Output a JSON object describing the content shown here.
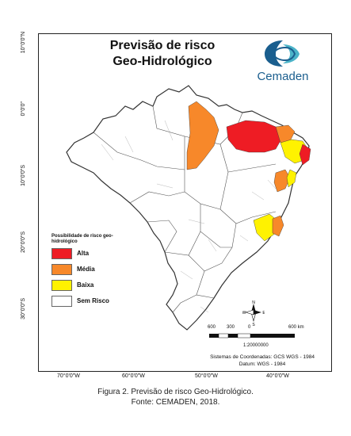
{
  "map": {
    "title_line1": "Previsão de risco",
    "title_line2": "Geo-Hidrológico",
    "logo_text": "Cemaden",
    "latitude_labels": [
      "10°0'0\"N",
      "0°0'0\"",
      "10°0'0\"S",
      "20°0'0\"S",
      "30°0'0\"S"
    ],
    "longitude_labels": [
      "70°0'0\"W",
      "60°0'0\"W",
      "50°0'0\"W",
      "40°0'0\"W"
    ],
    "legend": {
      "title": "Possibilidade de risco geo-hidrológico",
      "items": [
        {
          "label": "Alta",
          "color": "#ee1c24"
        },
        {
          "label": "Média",
          "color": "#f7882a"
        },
        {
          "label": "Baixa",
          "color": "#fff200"
        },
        {
          "label": "Sem Risco",
          "color": "#ffffff"
        }
      ]
    },
    "compass": {
      "n": "N",
      "s": "S",
      "e": "E",
      "w": "W"
    },
    "scale": {
      "labels": [
        "600",
        "300",
        "0",
        "600 km"
      ],
      "ratio": "1:20000000"
    },
    "coordinate_system": "Sistemas de Coordenadas: GCS WGS - 1984",
    "datum": "Datum: WGS - 1984",
    "colors": {
      "high": "#ee1c24",
      "medium": "#f7882a",
      "low": "#fff200",
      "border": "#555555",
      "logo_blue": "#1a5e8e",
      "logo_teal": "#4bb3c8"
    }
  },
  "caption": {
    "line1": "Figura 2. Previsão de risco Geo-Hidrológico.",
    "line2": "Fonte: CEMADEN, 2018."
  }
}
